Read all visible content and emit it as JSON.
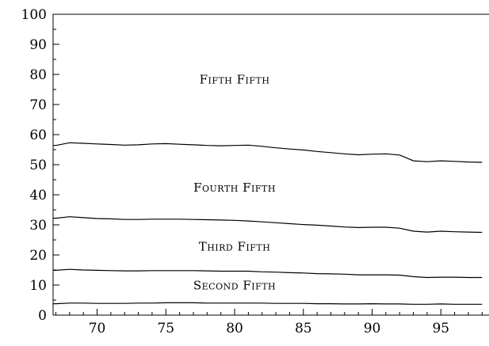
{
  "chart_data": {
    "type": "line",
    "title": "",
    "xlabel": "",
    "ylabel": "",
    "xlim": [
      66.8,
      98.5
    ],
    "ylim": [
      0,
      100
    ],
    "x_ticks": [
      70,
      75,
      80,
      85,
      90,
      95
    ],
    "y_ticks": [
      0,
      10,
      20,
      30,
      40,
      50,
      60,
      70,
      80,
      90,
      100
    ],
    "x": [
      67,
      68,
      69,
      70,
      71,
      72,
      73,
      74,
      75,
      76,
      77,
      78,
      79,
      80,
      81,
      82,
      83,
      84,
      85,
      86,
      87,
      88,
      89,
      90,
      91,
      92,
      93,
      94,
      95,
      96,
      97,
      98
    ],
    "series": [
      {
        "values": [
          3.8,
          4.0,
          4.0,
          3.9,
          3.9,
          3.9,
          4.0,
          4.0,
          4.1,
          4.1,
          4.1,
          4.0,
          4.0,
          4.0,
          4.0,
          4.0,
          3.9,
          3.9,
          3.9,
          3.8,
          3.8,
          3.7,
          3.7,
          3.8,
          3.7,
          3.7,
          3.6,
          3.6,
          3.7,
          3.6,
          3.6,
          3.6
        ]
      },
      {
        "values": [
          14.9,
          15.2,
          15.0,
          14.9,
          14.8,
          14.7,
          14.7,
          14.8,
          14.8,
          14.8,
          14.8,
          14.7,
          14.6,
          14.6,
          14.6,
          14.4,
          14.3,
          14.1,
          14.0,
          13.8,
          13.7,
          13.6,
          13.4,
          13.4,
          13.4,
          13.3,
          12.8,
          12.5,
          12.6,
          12.6,
          12.5,
          12.5
        ]
      },
      {
        "values": [
          32.2,
          32.7,
          32.4,
          32.1,
          32.0,
          31.8,
          31.8,
          31.9,
          31.9,
          31.9,
          31.8,
          31.7,
          31.6,
          31.5,
          31.3,
          31.0,
          30.7,
          30.4,
          30.1,
          29.9,
          29.6,
          29.3,
          29.1,
          29.2,
          29.2,
          28.9,
          27.9,
          27.6,
          27.9,
          27.7,
          27.6,
          27.5
        ]
      },
      {
        "values": [
          56.4,
          57.3,
          57.1,
          56.9,
          56.7,
          56.5,
          56.6,
          56.9,
          57.0,
          56.8,
          56.6,
          56.4,
          56.3,
          56.4,
          56.5,
          56.1,
          55.6,
          55.2,
          54.9,
          54.4,
          54.0,
          53.6,
          53.3,
          53.5,
          53.6,
          53.2,
          51.3,
          51.0,
          51.3,
          51.1,
          50.9,
          50.8
        ]
      }
    ],
    "region_labels": [
      {
        "text": "Fifth Fifth",
        "x": 80,
        "y": 77
      },
      {
        "text": "Fourth Fifth",
        "x": 80,
        "y": 41
      },
      {
        "text": "Third Fifth",
        "x": 80,
        "y": 21.5
      },
      {
        "text": "Second Fifth",
        "x": 80,
        "y": 8.5
      }
    ],
    "grid": false,
    "legend": "none"
  }
}
